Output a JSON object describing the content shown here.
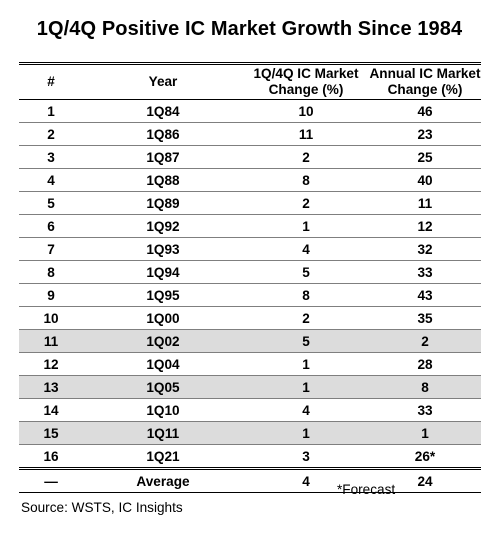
{
  "chart_data": {
    "type": "table",
    "title": "1Q/4Q Positive IC Market Growth Since 1984",
    "columns": [
      "#",
      "Year",
      "1Q/4Q IC Market Change (%)",
      "Annual IC Market Change (%)"
    ],
    "header_lines": {
      "num": "#",
      "year": "Year",
      "q_line1": "1Q/4Q IC Market",
      "q_line2": "Change (%)",
      "a_line1": "Annual IC Market",
      "a_line2": "Change (%)"
    },
    "rows": [
      {
        "num": "1",
        "year": "1Q84",
        "q": "10",
        "annual": "46"
      },
      {
        "num": "2",
        "year": "1Q86",
        "q": "11",
        "annual": "23"
      },
      {
        "num": "3",
        "year": "1Q87",
        "q": "2",
        "annual": "25"
      },
      {
        "num": "4",
        "year": "1Q88",
        "q": "8",
        "annual": "40"
      },
      {
        "num": "5",
        "year": "1Q89",
        "q": "2",
        "annual": "11"
      },
      {
        "num": "6",
        "year": "1Q92",
        "q": "1",
        "annual": "12"
      },
      {
        "num": "7",
        "year": "1Q93",
        "q": "4",
        "annual": "32"
      },
      {
        "num": "8",
        "year": "1Q94",
        "q": "5",
        "annual": "33"
      },
      {
        "num": "9",
        "year": "1Q95",
        "q": "8",
        "annual": "43"
      },
      {
        "num": "10",
        "year": "1Q00",
        "q": "2",
        "annual": "35"
      },
      {
        "num": "11",
        "year": "1Q02",
        "q": "5",
        "annual": "2"
      },
      {
        "num": "12",
        "year": "1Q04",
        "q": "1",
        "annual": "28"
      },
      {
        "num": "13",
        "year": "1Q05",
        "q": "1",
        "annual": "8"
      },
      {
        "num": "14",
        "year": "1Q10",
        "q": "4",
        "annual": "33"
      },
      {
        "num": "15",
        "year": "1Q11",
        "q": "1",
        "annual": "1"
      },
      {
        "num": "16",
        "year": "1Q21",
        "q": "3",
        "annual": "26*"
      }
    ],
    "highlighted_rows": [
      "11",
      "13",
      "15"
    ],
    "highlight_color": "#dcdcdc",
    "average": {
      "num": "—",
      "year": "Average",
      "q": "4",
      "annual": "24"
    },
    "footnote": "*Forecast",
    "source": "Source: WSTS, IC Insights"
  }
}
